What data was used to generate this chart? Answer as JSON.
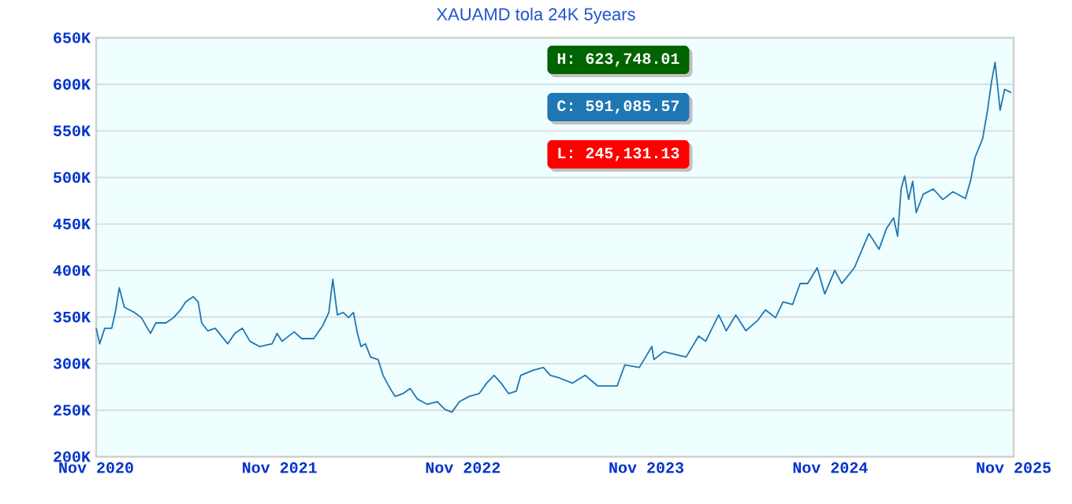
{
  "chart_data": {
    "type": "line",
    "title": "XAUAMD tola 24K 5years",
    "annotations": [
      "H: 623,748.01",
      "C: 591,085.57",
      "L: 245,131.13"
    ],
    "x": [
      "2020-11-01",
      "2020-11-08",
      "2020-11-18",
      "2020-12-02",
      "2020-12-10",
      "2020-12-17",
      "2020-12-27",
      "2021-01-16",
      "2021-01-30",
      "2021-02-17",
      "2021-02-28",
      "2021-03-20",
      "2021-04-04",
      "2021-04-18",
      "2021-04-28",
      "2021-05-13",
      "2021-05-23",
      "2021-05-30",
      "2021-06-11",
      "2021-06-26",
      "2021-07-21",
      "2021-08-04",
      "2021-08-19",
      "2021-09-03",
      "2021-09-22",
      "2021-10-17",
      "2021-10-27",
      "2021-11-06",
      "2021-11-30",
      "2021-12-15",
      "2022-01-08",
      "2022-01-26",
      "2022-02-07",
      "2022-02-15",
      "2022-02-24",
      "2022-03-08",
      "2022-03-18",
      "2022-03-28",
      "2022-04-05",
      "2022-04-12",
      "2022-04-21",
      "2022-05-01",
      "2022-05-16",
      "2022-05-26",
      "2022-06-09",
      "2022-06-19",
      "2022-07-04",
      "2022-07-19",
      "2022-08-02",
      "2022-08-22",
      "2022-09-11",
      "2022-09-26",
      "2022-10-10",
      "2022-10-25",
      "2022-11-13",
      "2022-12-03",
      "2022-12-18",
      "2023-01-02",
      "2023-01-16",
      "2023-01-31",
      "2023-02-15",
      "2023-02-24",
      "2023-03-21",
      "2023-04-10",
      "2023-04-24",
      "2023-05-12",
      "2023-06-07",
      "2023-07-02",
      "2023-07-27",
      "2023-09-04",
      "2023-09-19",
      "2023-10-18",
      "2023-11-12",
      "2023-11-16",
      "2023-12-06",
      "2024-01-19",
      "2024-02-13",
      "2024-02-27",
      "2024-03-24",
      "2024-04-08",
      "2024-04-27",
      "2024-05-17",
      "2024-06-10",
      "2024-06-25",
      "2024-07-15",
      "2024-07-30",
      "2024-08-18",
      "2024-09-02",
      "2024-09-17",
      "2024-10-06",
      "2024-10-21",
      "2024-11-10",
      "2024-11-24",
      "2024-12-19",
      "2025-01-08",
      "2025-01-17",
      "2025-02-06",
      "2025-02-21",
      "2025-03-07",
      "2025-03-15",
      "2025-03-22",
      "2025-03-29",
      "2025-04-06",
      "2025-04-14",
      "2025-04-21",
      "2025-05-05",
      "2025-05-25",
      "2025-06-13",
      "2025-07-03",
      "2025-07-28",
      "2025-08-07",
      "2025-08-16",
      "2025-08-31",
      "2025-09-10",
      "2025-09-18",
      "2025-09-25",
      "2025-10-05",
      "2025-10-14",
      "2025-10-27"
    ],
    "series": [
      {
        "color": "#1f77b4",
        "values": [
          338200,
          321300,
          338000,
          338000,
          357800,
          381500,
          360700,
          355000,
          349400,
          332500,
          343800,
          343800,
          349400,
          357800,
          366300,
          372000,
          366300,
          343800,
          335300,
          338000,
          321300,
          332500,
          338000,
          324000,
          318400,
          321300,
          332500,
          324000,
          334200,
          326900,
          326900,
          340900,
          355000,
          390600,
          352300,
          355000,
          349400,
          355000,
          332500,
          318400,
          321300,
          307100,
          304400,
          287500,
          273300,
          264800,
          267700,
          273300,
          262100,
          256300,
          259200,
          250800,
          247900,
          259200,
          264800,
          267700,
          279000,
          287500,
          279000,
          267700,
          270500,
          287500,
          293000,
          295900,
          287500,
          284600,
          279000,
          287500,
          276100,
          276100,
          298600,
          295900,
          318400,
          304400,
          312800,
          307100,
          329700,
          324000,
          352300,
          335300,
          352300,
          335300,
          346700,
          357800,
          349400,
          366300,
          363600,
          386100,
          386100,
          403000,
          374800,
          400100,
          386100,
          403000,
          428400,
          439700,
          422800,
          445300,
          456600,
          436800,
          487600,
          501600,
          476300,
          496000,
          462200,
          482000,
          487600,
          476300,
          484700,
          477400,
          496000,
          521400,
          541200,
          572200,
          603100,
          623700,
          572200,
          594600,
          591100
        ]
      }
    ],
    "xlim": [
      "2020-11-01",
      "2025-11-01"
    ],
    "xticks": [
      {
        "value": "2020-11-01",
        "label": "Nov 2020"
      },
      {
        "value": "2021-11-01",
        "label": "Nov 2021"
      },
      {
        "value": "2022-11-01",
        "label": "Nov 2022"
      },
      {
        "value": "2023-11-01",
        "label": "Nov 2023"
      },
      {
        "value": "2024-11-01",
        "label": "Nov 2024"
      },
      {
        "value": "2025-11-01",
        "label": "Nov 2025"
      }
    ],
    "ylim": [
      200000,
      650000
    ],
    "yticks": [
      {
        "value": 200000,
        "label": "200K"
      },
      {
        "value": 250000,
        "label": "250K"
      },
      {
        "value": 300000,
        "label": "300K"
      },
      {
        "value": 350000,
        "label": "350K"
      },
      {
        "value": 400000,
        "label": "400K"
      },
      {
        "value": 450000,
        "label": "450K"
      },
      {
        "value": 500000,
        "label": "500K"
      },
      {
        "value": 550000,
        "label": "550K"
      },
      {
        "value": 600000,
        "label": "600K"
      },
      {
        "value": 650000,
        "label": "650K"
      }
    ],
    "grid": "y",
    "marker": "none",
    "line_style": "solid"
  }
}
